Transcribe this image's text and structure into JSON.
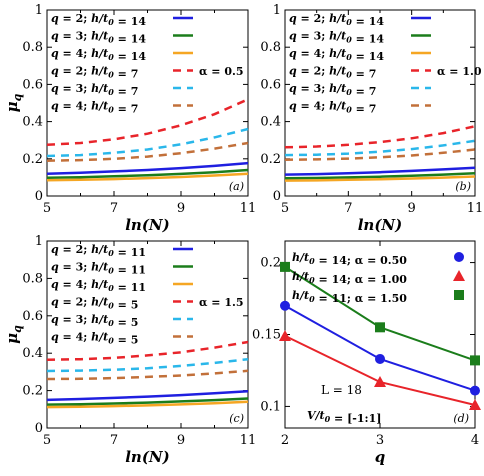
{
  "colors": {
    "blue": "#1f1fe0",
    "green": "#1b7d1b",
    "orange": "#f5a623",
    "red": "#e8242a",
    "cyan": "#2ab7ea",
    "brown": "#c2703a"
  },
  "chart_data": [
    {
      "panel": "(a)",
      "type": "line",
      "xlabel": "ln(N)",
      "ylabel": "μq",
      "xlim": [
        5,
        11
      ],
      "ylim": [
        0,
        1
      ],
      "xticks": [
        "5",
        "7",
        "9",
        "11"
      ],
      "yticks": [
        "0",
        "0.2",
        "0.4",
        "0.6",
        "0.8",
        "1"
      ],
      "annotation": "α = 0.5",
      "series": [
        {
          "name": "q = 2; h/t0 = 14",
          "color": "blue",
          "dash": false,
          "x": [
            5,
            6,
            7,
            8,
            9,
            10,
            11
          ],
          "y": [
            0.12,
            0.125,
            0.132,
            0.14,
            0.15,
            0.162,
            0.177
          ]
        },
        {
          "name": "q = 3; h/t0 = 14",
          "color": "green",
          "dash": false,
          "x": [
            5,
            6,
            7,
            8,
            9,
            10,
            11
          ],
          "y": [
            0.098,
            0.101,
            0.106,
            0.112,
            0.119,
            0.128,
            0.14
          ]
        },
        {
          "name": "q = 4; h/t0 = 14",
          "color": "orange",
          "dash": false,
          "x": [
            5,
            6,
            7,
            8,
            9,
            10,
            11
          ],
          "y": [
            0.085,
            0.087,
            0.091,
            0.096,
            0.102,
            0.11,
            0.12
          ]
        },
        {
          "name": "q = 2; h/t0 = 7",
          "color": "red",
          "dash": true,
          "x": [
            5,
            6,
            7,
            8,
            9,
            10,
            11
          ],
          "y": [
            0.275,
            0.285,
            0.305,
            0.335,
            0.38,
            0.44,
            0.52
          ]
        },
        {
          "name": "q = 3; h/t0 = 7",
          "color": "cyan",
          "dash": true,
          "x": [
            5,
            6,
            7,
            8,
            9,
            10,
            11
          ],
          "y": [
            0.215,
            0.22,
            0.232,
            0.25,
            0.278,
            0.315,
            0.36
          ]
        },
        {
          "name": "q = 4; h/t0 = 7",
          "color": "brown",
          "dash": true,
          "x": [
            5,
            6,
            7,
            8,
            9,
            10,
            11
          ],
          "y": [
            0.19,
            0.193,
            0.2,
            0.212,
            0.23,
            0.255,
            0.285
          ]
        }
      ]
    },
    {
      "panel": "(b)",
      "type": "line",
      "xlabel": "ln(N)",
      "ylabel": "",
      "xlim": [
        5,
        11
      ],
      "ylim": [
        0,
        1
      ],
      "xticks": [
        "5",
        "7",
        "9",
        "11"
      ],
      "yticks": [
        "0",
        "0.2",
        "0.4",
        "0.6",
        "0.8",
        "1"
      ],
      "annotation": "α = 1.0",
      "series": [
        {
          "name": "q = 2; h/t0 = 14",
          "color": "blue",
          "dash": false,
          "x": [
            5,
            6,
            7,
            8,
            9,
            10,
            11
          ],
          "y": [
            0.115,
            0.118,
            0.122,
            0.128,
            0.135,
            0.143,
            0.152
          ]
        },
        {
          "name": "q = 3; h/t0 = 14",
          "color": "green",
          "dash": false,
          "x": [
            5,
            6,
            7,
            8,
            9,
            10,
            11
          ],
          "y": [
            0.095,
            0.097,
            0.1,
            0.104,
            0.109,
            0.115,
            0.122
          ]
        },
        {
          "name": "q = 4; h/t0 = 14",
          "color": "orange",
          "dash": false,
          "x": [
            5,
            6,
            7,
            8,
            9,
            10,
            11
          ],
          "y": [
            0.083,
            0.084,
            0.087,
            0.09,
            0.094,
            0.099,
            0.105
          ]
        },
        {
          "name": "q = 2; h/t0 = 7",
          "color": "red",
          "dash": true,
          "x": [
            5,
            6,
            7,
            8,
            9,
            10,
            11
          ],
          "y": [
            0.262,
            0.266,
            0.275,
            0.29,
            0.31,
            0.338,
            0.375
          ]
        },
        {
          "name": "q = 3; h/t0 = 7",
          "color": "cyan",
          "dash": true,
          "x": [
            5,
            6,
            7,
            8,
            9,
            10,
            11
          ],
          "y": [
            0.22,
            0.222,
            0.228,
            0.238,
            0.252,
            0.272,
            0.297
          ]
        },
        {
          "name": "q = 4; h/t0 = 7",
          "color": "brown",
          "dash": true,
          "x": [
            5,
            6,
            7,
            8,
            9,
            10,
            11
          ],
          "y": [
            0.195,
            0.197,
            0.201,
            0.208,
            0.218,
            0.232,
            0.25
          ]
        }
      ]
    },
    {
      "panel": "(c)",
      "type": "line",
      "xlabel": "ln(N)",
      "ylabel": "μq",
      "xlim": [
        5,
        11
      ],
      "ylim": [
        0,
        1
      ],
      "xticks": [
        "5",
        "7",
        "9",
        "11"
      ],
      "yticks": [
        "0",
        "0.2",
        "0.4",
        "0.6",
        "0.8",
        "1"
      ],
      "annotation": "α = 1.5",
      "series": [
        {
          "name": "q = 2; h/t0 = 11",
          "color": "blue",
          "dash": false,
          "x": [
            5,
            6,
            7,
            8,
            9,
            10,
            11
          ],
          "y": [
            0.15,
            0.155,
            0.161,
            0.168,
            0.176,
            0.186,
            0.197
          ]
        },
        {
          "name": "q = 3; h/t0 = 11",
          "color": "green",
          "dash": false,
          "x": [
            5,
            6,
            7,
            8,
            9,
            10,
            11
          ],
          "y": [
            0.125,
            0.127,
            0.131,
            0.136,
            0.142,
            0.149,
            0.158
          ]
        },
        {
          "name": "q = 4; h/t0 = 11",
          "color": "orange",
          "dash": false,
          "x": [
            5,
            6,
            7,
            8,
            9,
            10,
            11
          ],
          "y": [
            0.112,
            0.114,
            0.117,
            0.121,
            0.126,
            0.132,
            0.14
          ]
        },
        {
          "name": "q = 2; h/t0 = 5",
          "color": "red",
          "dash": true,
          "x": [
            5,
            6,
            7,
            8,
            9,
            10,
            11
          ],
          "y": [
            0.365,
            0.368,
            0.375,
            0.388,
            0.405,
            0.43,
            0.46
          ]
        },
        {
          "name": "q = 3; h/t0 = 5",
          "color": "cyan",
          "dash": true,
          "x": [
            5,
            6,
            7,
            8,
            9,
            10,
            11
          ],
          "y": [
            0.305,
            0.307,
            0.312,
            0.32,
            0.332,
            0.348,
            0.368
          ]
        },
        {
          "name": "q = 4; h/t0 = 5",
          "color": "brown",
          "dash": true,
          "x": [
            5,
            6,
            7,
            8,
            9,
            10,
            11
          ],
          "y": [
            0.262,
            0.263,
            0.267,
            0.273,
            0.281,
            0.292,
            0.306
          ]
        }
      ]
    },
    {
      "panel": "(d)",
      "type": "line",
      "xlabel": "q",
      "ylabel": "",
      "xlim": [
        2,
        4
      ],
      "ylim": [
        0.085,
        0.215
      ],
      "xticks": [
        "2",
        "3",
        "4"
      ],
      "yticks": [
        "0.1",
        "0.15",
        "0.2"
      ],
      "annotations": [
        "L = 18",
        "V/t0 = [-1:1]"
      ],
      "series": [
        {
          "name": "h/t0 = 14; α = 0.50",
          "color": "blue",
          "marker": "circle",
          "x": [
            2,
            3,
            4
          ],
          "y": [
            0.17,
            0.133,
            0.111
          ]
        },
        {
          "name": "h/t0 = 14; α = 1.00",
          "color": "red",
          "marker": "triangle",
          "x": [
            2,
            3,
            4
          ],
          "y": [
            0.149,
            0.117,
            0.101
          ]
        },
        {
          "name": "h/t0 = 11; α = 1.50",
          "color": "green",
          "marker": "square",
          "x": [
            2,
            3,
            4
          ],
          "y": [
            0.197,
            0.155,
            0.132
          ]
        }
      ]
    }
  ]
}
